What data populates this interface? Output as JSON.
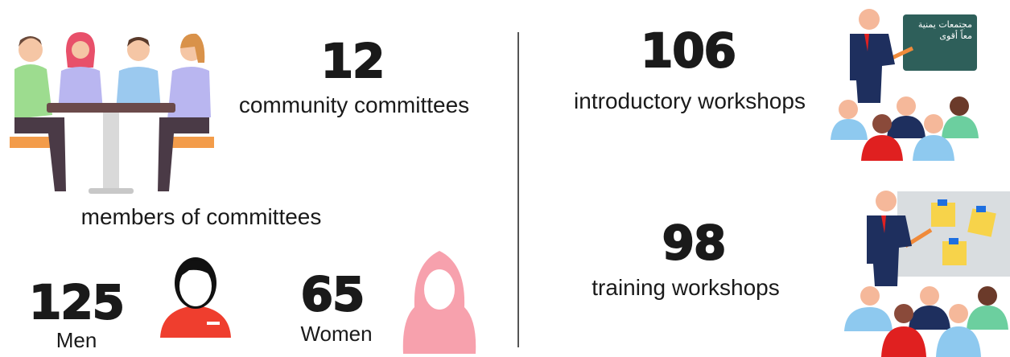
{
  "committees": {
    "value": 12,
    "label": "community committees"
  },
  "members": {
    "title": "members of committees",
    "men": {
      "value": 125,
      "label": "Men"
    },
    "women": {
      "value": 65,
      "label": "Women"
    }
  },
  "introductory_workshops": {
    "value": 106,
    "label": "introductory workshops",
    "board_text": [
      "مجتمعات يمنية",
      "معاً أقوى"
    ]
  },
  "training_workshops": {
    "value": 98,
    "label": "training workshops"
  }
}
